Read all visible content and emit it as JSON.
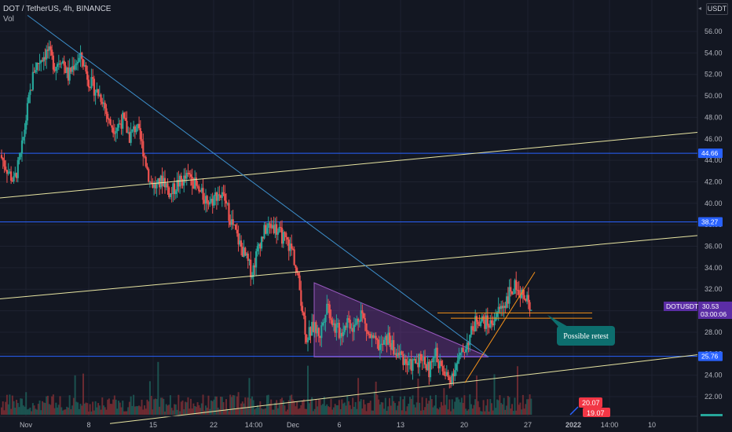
{
  "header": {
    "title": "DOT / TetherUS, 4h, BINANCE",
    "vol_label": "Vol",
    "currency": "USDT"
  },
  "chart_data": {
    "type": "candlestick",
    "symbol": "DOTUSDT",
    "interval": "4h",
    "exchange": "BINANCE",
    "y_ticks": [
      "56.00",
      "54.00",
      "52.00",
      "50.00",
      "48.00",
      "46.00",
      "44.00",
      "42.00",
      "40.00",
      "38.00",
      "36.00",
      "34.00",
      "32.00",
      "30.00",
      "28.00",
      "26.00",
      "24.00",
      "22.00"
    ],
    "ylim": [
      19.0,
      57.6
    ],
    "x_ticks": [
      "Nov",
      "8",
      "15",
      "22",
      "14:00",
      "Dec",
      "6",
      "13",
      "20",
      "27",
      "2022",
      "14:00",
      "10"
    ],
    "price_path": [
      {
        "x": "Oct 27",
        "p": 44.5
      },
      {
        "x": "Oct 29",
        "p": 43.2
      },
      {
        "x": "Oct 30",
        "p": 42.0
      },
      {
        "x": "Oct 31",
        "p": 44.3
      },
      {
        "x": "Nov 1",
        "p": 48.8
      },
      {
        "x": "Nov 2",
        "p": 52.5
      },
      {
        "x": "Nov 3",
        "p": 53.5
      },
      {
        "x": "Nov 4",
        "p": 54.2
      },
      {
        "x": "Nov 5",
        "p": 52.8
      },
      {
        "x": "Nov 6",
        "p": 53.6
      },
      {
        "x": "Nov 7",
        "p": 51.8
      },
      {
        "x": "Nov 8",
        "p": 53.2
      },
      {
        "x": "Nov 9",
        "p": 53.5
      },
      {
        "x": "Nov 10",
        "p": 51.5
      },
      {
        "x": "Nov 11",
        "p": 50.5
      },
      {
        "x": "Nov 12",
        "p": 49.8
      },
      {
        "x": "Nov 13",
        "p": 47.5
      },
      {
        "x": "Nov 14",
        "p": 47.0
      },
      {
        "x": "Nov 15",
        "p": 47.8
      },
      {
        "x": "Nov 16",
        "p": 46.2
      },
      {
        "x": "Nov 17",
        "p": 47.2
      },
      {
        "x": "Nov 18",
        "p": 45.0
      },
      {
        "x": "Nov 19",
        "p": 42.0
      },
      {
        "x": "Nov 20",
        "p": 41.5
      },
      {
        "x": "Nov 21",
        "p": 42.3
      },
      {
        "x": "Nov 22",
        "p": 40.8
      },
      {
        "x": "Nov 23",
        "p": 41.8
      },
      {
        "x": "Nov 24",
        "p": 42.2
      },
      {
        "x": "Nov 25",
        "p": 42.6
      },
      {
        "x": "Nov 26",
        "p": 41.2
      },
      {
        "x": "Nov 27",
        "p": 40.5
      },
      {
        "x": "Nov 28",
        "p": 40.2
      },
      {
        "x": "Nov 29",
        "p": 41.0
      },
      {
        "x": "Nov 30",
        "p": 40.3
      },
      {
        "x": "Dec 1",
        "p": 38.2
      },
      {
        "x": "Dec 2",
        "p": 36.5
      },
      {
        "x": "Dec 3",
        "p": 35.0
      },
      {
        "x": "Dec 4",
        "p": 33.5
      },
      {
        "x": "Dec 5",
        "p": 36.2
      },
      {
        "x": "Dec 6",
        "p": 37.6
      },
      {
        "x": "Dec 7",
        "p": 38.0
      },
      {
        "x": "Dec 8",
        "p": 37.2
      },
      {
        "x": "Dec 9",
        "p": 36.5
      },
      {
        "x": "Dec 10",
        "p": 35.5
      },
      {
        "x": "Dec 11",
        "p": 32.0
      },
      {
        "x": "Dec 12",
        "p": 27.5
      },
      {
        "x": "Dec 13",
        "p": 28.5
      },
      {
        "x": "Dec 14",
        "p": 27.8
      },
      {
        "x": "Dec 15",
        "p": 30.8
      },
      {
        "x": "Dec 16",
        "p": 28.6
      },
      {
        "x": "Dec 17",
        "p": 27.9
      },
      {
        "x": "Dec 18",
        "p": 29.2
      },
      {
        "x": "Dec 19",
        "p": 28.4
      },
      {
        "x": "Dec 20",
        "p": 30.0
      },
      {
        "x": "Dec 21",
        "p": 27.8
      },
      {
        "x": "Dec 22",
        "p": 27.0
      },
      {
        "x": "Dec 23",
        "p": 26.6
      },
      {
        "x": "Dec 24",
        "p": 27.5
      },
      {
        "x": "Dec 25",
        "p": 26.0
      },
      {
        "x": "Dec 26",
        "p": 25.8
      },
      {
        "x": "Dec 27",
        "p": 24.8
      },
      {
        "x": "Dec 28",
        "p": 25.2
      },
      {
        "x": "Dec 29",
        "p": 25.8
      },
      {
        "x": "Dec 30",
        "p": 24.4
      },
      {
        "x": "Dec 31",
        "p": 26.0
      },
      {
        "x": "Jan 1",
        "p": 24.2
      },
      {
        "x": "Jan 2",
        "p": 23.6
      },
      {
        "x": "Jan 3",
        "p": 25.0
      },
      {
        "x": "Jan 4",
        "p": 26.2
      },
      {
        "x": "Jan 5",
        "p": 27.6
      },
      {
        "x": "Jan 6",
        "p": 29.3
      },
      {
        "x": "Jan 7",
        "p": 29.0
      },
      {
        "x": "Jan 8",
        "p": 28.7
      },
      {
        "x": "Jan 9",
        "p": 29.8
      },
      {
        "x": "Jan 10",
        "p": 30.6
      },
      {
        "x": "Jan 11",
        "p": 31.8
      },
      {
        "x": "Jan 12",
        "p": 32.4
      },
      {
        "x": "Jan 13",
        "p": 31.0
      },
      {
        "x": "Jan 14",
        "p": 30.53
      }
    ],
    "price_labels": [
      {
        "text": "44.66",
        "value": 44.66,
        "color": "#2962ff"
      },
      {
        "text": "38.27",
        "value": 38.27,
        "color": "#2962ff"
      },
      {
        "text": "25.76",
        "value": 25.76,
        "color": "#2962ff"
      }
    ],
    "last_price": {
      "symbol": "DOTUSDT",
      "value": "30.53",
      "countdown": "03:00:06",
      "color": "#5b2da5"
    },
    "volume_labels": [
      {
        "text": "20.07",
        "color": "#f23645"
      },
      {
        "text": "19.07",
        "color": "#f23645"
      }
    ],
    "annotation": {
      "text": "Possible retest",
      "color": "#0d6e6e"
    }
  },
  "colors": {
    "background": "#131722",
    "up": "#26a69a",
    "down": "#ef5350",
    "hline": "#2962ff",
    "channel": "#e8e5a2",
    "trend": "#3d8fcb",
    "triangle": "#7b3c9e",
    "orange": "#f7931a"
  }
}
